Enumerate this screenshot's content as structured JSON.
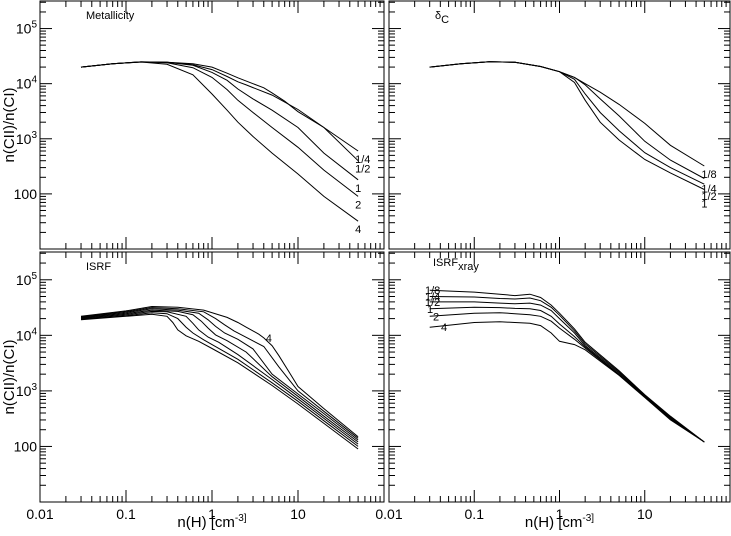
{
  "colors": {
    "line": "#000000",
    "background": "#ffffff"
  },
  "chart_data": [
    {
      "type": "line",
      "panel_label": "Metallicity",
      "xlog": true,
      "ylog": true,
      "xlim": [
        0.01,
        100
      ],
      "ylim": [
        10,
        316227
      ],
      "x_ticks": [],
      "y_ticks": [
        "10^5",
        "10^4",
        "10^3",
        "100"
      ],
      "ylabel": "n(CII)/n(CI)",
      "xlabel": "",
      "series": [
        {
          "name": "1/4",
          "x": [
            0.03,
            0.07,
            0.15,
            0.3,
            0.6,
            1,
            1.5,
            2,
            3,
            4,
            5,
            7,
            10,
            20,
            50
          ],
          "y": [
            20000,
            23000,
            24700,
            24500,
            23000,
            20000,
            15500,
            12800,
            10000,
            8400,
            6800,
            4800,
            3100,
            1600,
            600
          ]
        },
        {
          "name": "1/2",
          "x": [
            0.03,
            0.07,
            0.15,
            0.3,
            0.6,
            1,
            1.5,
            2,
            2.5,
            3,
            5,
            10,
            20,
            50
          ],
          "y": [
            20000,
            23000,
            24800,
            24500,
            22000,
            18000,
            13500,
            10800,
            9500,
            8500,
            6200,
            3400,
            1600,
            400
          ]
        },
        {
          "name": "1",
          "x": [
            0.03,
            0.07,
            0.15,
            0.3,
            0.6,
            1,
            1.5,
            2,
            3,
            5,
            10,
            20,
            50
          ],
          "y": [
            20000,
            23000,
            24800,
            24500,
            21500,
            16000,
            11500,
            8000,
            5300,
            3300,
            1600,
            550,
            180
          ]
        },
        {
          "name": "2",
          "x": [
            0.03,
            0.07,
            0.15,
            0.3,
            0.6,
            1,
            1.5,
            2,
            3,
            5,
            10,
            20,
            50
          ],
          "y": [
            20000,
            23000,
            24800,
            24000,
            19500,
            13000,
            7800,
            5000,
            3000,
            1600,
            700,
            270,
            90
          ]
        },
        {
          "name": "4",
          "x": [
            0.03,
            0.07,
            0.15,
            0.3,
            0.6,
            1,
            1.5,
            2,
            3,
            5,
            10,
            20,
            50
          ],
          "y": [
            20000,
            23000,
            24700,
            22500,
            14500,
            6500,
            3300,
            2000,
            1100,
            550,
            230,
            90,
            32
          ]
        }
      ]
    },
    {
      "type": "line",
      "panel_label": "δC",
      "panel_label_main": "δ",
      "panel_label_sub": "C",
      "xlog": true,
      "ylog": true,
      "xlim": [
        0.01,
        100
      ],
      "ylim": [
        10,
        316227
      ],
      "x_ticks": [],
      "y_ticks": [],
      "xlabel": "",
      "ylabel": "",
      "series": [
        {
          "name": "1/8",
          "x": [
            0.03,
            0.07,
            0.15,
            0.3,
            0.6,
            1,
            1.5,
            2,
            3,
            5,
            10,
            20,
            50
          ],
          "y": [
            20000,
            23000,
            25000,
            24500,
            20500,
            16500,
            13000,
            10000,
            7000,
            4200,
            1900,
            760,
            320
          ]
        },
        {
          "name": "1/4",
          "x": [
            0.03,
            0.07,
            0.15,
            0.3,
            0.6,
            1,
            1.5,
            2,
            3,
            5,
            10,
            20,
            50
          ],
          "y": [
            20000,
            23000,
            25000,
            24500,
            20500,
            16500,
            13000,
            9500,
            5300,
            2600,
            900,
            410,
            190
          ]
        },
        {
          "name": "1/2",
          "x": [
            0.03,
            0.07,
            0.15,
            0.3,
            0.6,
            1,
            1.5,
            2,
            3,
            5,
            10,
            20,
            50
          ],
          "y": [
            20000,
            23000,
            25000,
            24500,
            20500,
            16500,
            12000,
            6500,
            3000,
            1400,
            560,
            300,
            150
          ]
        },
        {
          "name": "1",
          "x": [
            0.03,
            0.07,
            0.15,
            0.3,
            0.6,
            1,
            1.5,
            2,
            3,
            5,
            10,
            20,
            50
          ],
          "y": [
            20000,
            23000,
            25000,
            24500,
            20500,
            16500,
            10500,
            5000,
            2000,
            950,
            420,
            240,
            120
          ]
        }
      ]
    },
    {
      "type": "line",
      "panel_label": "ISRF",
      "xlog": true,
      "ylog": true,
      "xlim": [
        0.01,
        100
      ],
      "ylim": [
        10,
        316227
      ],
      "x_ticks": [
        "0.01",
        "0.1",
        "1",
        "10"
      ],
      "y_ticks": [
        "10^5",
        "10^4",
        "10^3",
        "100"
      ],
      "xlabel": "n(H) [cm^-3]",
      "ylabel": "n(CII)/n(CI)",
      "series": [
        {
          "name": "",
          "x": [
            0.03,
            0.1,
            0.2,
            0.3,
            0.35,
            0.4,
            0.5,
            0.7,
            1,
            2,
            5,
            10,
            20,
            50
          ],
          "y": [
            19000,
            22000,
            24000,
            22000,
            17000,
            12500,
            9800,
            7800,
            5800,
            3200,
            1250,
            580,
            260,
            90
          ]
        },
        {
          "name": "",
          "x": [
            0.03,
            0.1,
            0.2,
            0.3,
            0.4,
            0.5,
            0.6,
            0.8,
            1,
            2,
            5,
            10,
            20,
            50
          ],
          "y": [
            19500,
            22500,
            25500,
            24500,
            20000,
            14000,
            11000,
            8300,
            6800,
            3700,
            1400,
            650,
            290,
            100
          ]
        },
        {
          "name": "",
          "x": [
            0.03,
            0.1,
            0.2,
            0.3,
            0.5,
            0.6,
            0.7,
            0.9,
            1.2,
            2,
            5,
            10,
            20,
            50
          ],
          "y": [
            20000,
            23500,
            27000,
            26500,
            22000,
            16500,
            12500,
            9300,
            7500,
            4500,
            1600,
            720,
            320,
            110
          ]
        },
        {
          "name": "",
          "x": [
            0.03,
            0.1,
            0.2,
            0.4,
            0.6,
            0.75,
            0.9,
            1.1,
            1.5,
            2.5,
            5,
            10,
            20,
            50
          ],
          "y": [
            20500,
            24500,
            28500,
            27000,
            23500,
            18000,
            13500,
            10200,
            8000,
            5000,
            1800,
            800,
            350,
            120
          ]
        },
        {
          "name": "",
          "x": [
            0.03,
            0.1,
            0.2,
            0.4,
            0.7,
            0.9,
            1.1,
            1.4,
            2,
            3,
            5,
            10,
            20,
            50
          ],
          "y": [
            21000,
            25500,
            30000,
            28500,
            25000,
            19000,
            14500,
            11000,
            8500,
            5700,
            2000,
            880,
            390,
            130
          ]
        },
        {
          "name": "",
          "x": [
            0.03,
            0.1,
            0.2,
            0.4,
            0.8,
            1.1,
            1.4,
            1.8,
            2.5,
            4,
            6,
            10,
            20,
            50
          ],
          "y": [
            21500,
            26500,
            31500,
            30000,
            26500,
            20000,
            15500,
            12000,
            9200,
            6300,
            2700,
            1000,
            430,
            140
          ]
        },
        {
          "name": "4",
          "x": [
            0.03,
            0.1,
            0.2,
            0.4,
            0.8,
            1.5,
            2,
            2.5,
            3,
            3.5,
            4,
            5,
            6,
            8,
            10,
            20,
            50
          ],
          "y": [
            22000,
            27500,
            33000,
            32000,
            28500,
            21000,
            17000,
            14000,
            12000,
            10500,
            9000,
            6500,
            4300,
            2100,
            1200,
            480,
            150
          ]
        }
      ]
    },
    {
      "type": "line",
      "panel_label": "ISRFxray",
      "panel_label_main": "ISRF",
      "panel_label_sub": "xray",
      "xlog": true,
      "ylog": true,
      "xlim": [
        0.01,
        100
      ],
      "ylim": [
        10,
        316227
      ],
      "x_ticks": [
        "0.01",
        "0.1",
        "1",
        "10"
      ],
      "y_ticks": [],
      "xlabel": "n(H) [cm^-3]",
      "ylabel": "",
      "series": [
        {
          "name": "1/8",
          "x": [
            0.03,
            0.1,
            0.2,
            0.3,
            0.45,
            0.6,
            0.8,
            1,
            1.5,
            2,
            5,
            10,
            20,
            50
          ],
          "y": [
            65000,
            60000,
            55000,
            52000,
            55000,
            48000,
            35000,
            25000,
            13000,
            7500,
            2300,
            850,
            350,
            120
          ]
        },
        {
          "name": "1/4",
          "x": [
            0.03,
            0.1,
            0.2,
            0.3,
            0.45,
            0.6,
            0.8,
            1,
            1.5,
            2,
            5,
            10,
            20,
            50
          ],
          "y": [
            50000,
            49000,
            46000,
            45000,
            47000,
            42000,
            32000,
            23000,
            12000,
            7000,
            2200,
            830,
            340,
            120
          ]
        },
        {
          "name": "1/2",
          "x": [
            0.03,
            0.1,
            0.2,
            0.3,
            0.45,
            0.6,
            0.8,
            1,
            1.5,
            2,
            5,
            10,
            20,
            50
          ],
          "y": [
            40000,
            40000,
            38000,
            37000,
            38000,
            35000,
            28000,
            20000,
            11000,
            6500,
            2100,
            810,
            330,
            120
          ]
        },
        {
          "name": "1",
          "x": [
            0.03,
            0.1,
            0.2,
            0.3,
            0.45,
            0.6,
            0.8,
            1,
            1.5,
            2,
            5,
            10,
            20,
            50
          ],
          "y": [
            30000,
            32000,
            31500,
            30500,
            30000,
            28000,
            22000,
            16000,
            9500,
            6200,
            2000,
            790,
            320,
            120
          ]
        },
        {
          "name": "2",
          "x": [
            0.03,
            0.1,
            0.2,
            0.3,
            0.45,
            0.6,
            0.8,
            1,
            1.5,
            2,
            5,
            10,
            20,
            50
          ],
          "y": [
            22000,
            25000,
            25500,
            24500,
            23500,
            22000,
            18000,
            13500,
            8500,
            5900,
            1950,
            770,
            310,
            120
          ]
        },
        {
          "name": "4",
          "x": [
            0.03,
            0.1,
            0.2,
            0.3,
            0.45,
            0.6,
            0.8,
            1,
            1.5,
            2,
            5,
            10,
            20,
            50
          ],
          "y": [
            14000,
            17000,
            17500,
            17000,
            16500,
            15000,
            11000,
            7800,
            6800,
            5500,
            1900,
            760,
            300,
            120
          ]
        }
      ]
    }
  ]
}
